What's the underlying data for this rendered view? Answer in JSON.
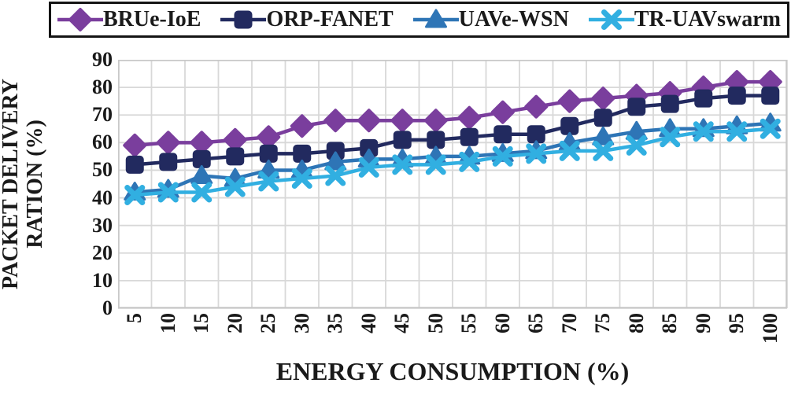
{
  "figure": {
    "y_axis_title_line1": "PACKET DELIVERY",
    "y_axis_title_line2": "RATION (%)",
    "x_axis_title": "ENERGY CONSUMPTION (%)"
  },
  "colors": {
    "grid": "#d8d8d8",
    "plot_border": "#c9c9c9",
    "text": "#1a1a1a",
    "legend_border": "#141414",
    "series_purple": "#7a3e9d",
    "series_navy": "#222a5f",
    "series_blue": "#2e75b6",
    "series_cyan": "#31afe1"
  },
  "chart_data": {
    "type": "line",
    "title": "",
    "xlabel": "ENERGY CONSUMPTION (%)",
    "ylabel": "PACKET DELIVERY RATION (%)",
    "ylim": [
      0,
      90
    ],
    "y_ticks": [
      0,
      10,
      20,
      30,
      40,
      50,
      60,
      70,
      80,
      90
    ],
    "grid": true,
    "legend_position": "top",
    "x": [
      5,
      10,
      15,
      20,
      25,
      30,
      35,
      40,
      45,
      50,
      55,
      60,
      65,
      70,
      75,
      80,
      85,
      90,
      95,
      100
    ],
    "series": [
      {
        "name": "BRUe-IoE",
        "marker": "diamond",
        "color": "#7a3e9d",
        "values": [
          59,
          60,
          60,
          61,
          62,
          66,
          68,
          68,
          68,
          68,
          69,
          71,
          73,
          75,
          76,
          77,
          78,
          80,
          82,
          82
        ]
      },
      {
        "name": "ORP-FANET",
        "marker": "square",
        "color": "#222a5f",
        "values": [
          52,
          53,
          54,
          55,
          56,
          56,
          57,
          58,
          61,
          61,
          62,
          63,
          63,
          66,
          69,
          73,
          74,
          76,
          77,
          77
        ]
      },
      {
        "name": "UAVe-WSN",
        "marker": "triangle",
        "color": "#2e75b6",
        "values": [
          42,
          43,
          48,
          47,
          50,
          50,
          53,
          54,
          54,
          55,
          55,
          56,
          57,
          60,
          62,
          64,
          65,
          65,
          66,
          67
        ]
      },
      {
        "name": "TR-UAVswarm",
        "marker": "x",
        "color": "#31afe1",
        "values": [
          41,
          42,
          42,
          44,
          46,
          47,
          48,
          51,
          52,
          52,
          53,
          55,
          56,
          57,
          57,
          59,
          62,
          64,
          64,
          65
        ]
      }
    ]
  }
}
